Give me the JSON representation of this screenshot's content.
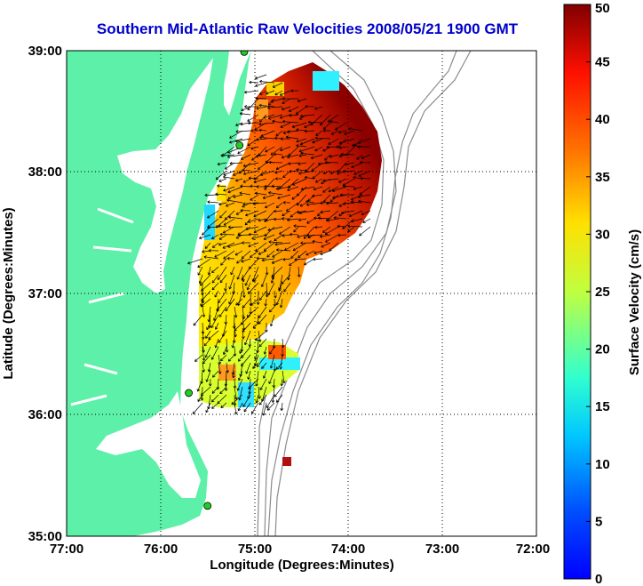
{
  "title": "Southern Mid-Atlantic Raw Velocities 2008/05/21 1900 GMT",
  "colors": {
    "title": "#0000cc",
    "land": "#5cf0a8",
    "bathymetry": "#8c8c8c",
    "station": "#22cc22",
    "frame": "#000000"
  },
  "map": {
    "xlabel": "Longitude (Degrees:Minutes)",
    "ylabel": "Latitude (Degrees:Minutes)",
    "lon_range": [
      -77,
      -72
    ],
    "lat_range": [
      35,
      39
    ],
    "x_ticks": [
      "77:00",
      "76:00",
      "75:00",
      "74:00",
      "73:00",
      "72:00"
    ],
    "y_ticks": [
      "39:00",
      "38:00",
      "37:00",
      "36:00",
      "35:00"
    ],
    "grid": true
  },
  "colorbar": {
    "label": "Surface Velocity (cm/s)",
    "range": [
      0,
      50
    ],
    "ticks": [
      "0",
      "5",
      "10",
      "15",
      "20",
      "25",
      "30",
      "35",
      "40",
      "45",
      "50"
    ]
  },
  "stations": [
    {
      "lon": -75.11,
      "lat": 38.99
    },
    {
      "lon": -75.16,
      "lat": 38.22
    },
    {
      "lon": -75.7,
      "lat": 36.18
    },
    {
      "lon": -75.5,
      "lat": 35.25
    }
  ]
}
